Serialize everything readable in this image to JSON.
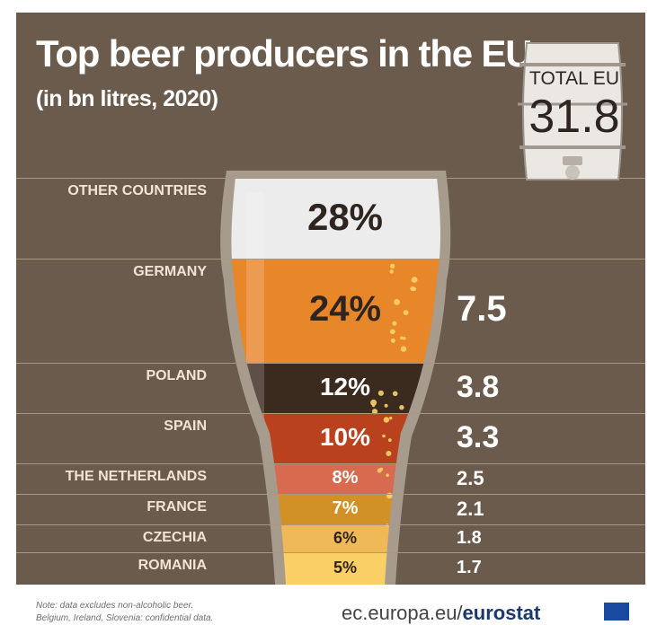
{
  "header": {
    "title": "Top beer producers in the EU",
    "subtitle": "(in bn litres, 2020)"
  },
  "total": {
    "label": "TOTAL EU",
    "value": "31.8"
  },
  "footer": {
    "note_line1": "Note: data excludes non-alcoholic beer.",
    "note_line2": "Belgium, Ireland, Slovenia: confidential data.",
    "source_prefix": "ec.europa.eu/",
    "source_brand": "eurostat"
  },
  "colors": {
    "background": "#6b5b4c",
    "foam": "#f3efe9",
    "other_countries": "#ececec",
    "germany": "#e8862a",
    "poland": "#3b2a1e",
    "spain": "#b9411e",
    "the_netherlands": "#d86a4f",
    "france": "#d29127",
    "czechia": "#efb957",
    "romania": "#f9cf66"
  },
  "chart_data": {
    "type": "bar",
    "title": "Top beer producers in the EU",
    "subtitle": "(in bn litres, 2020)",
    "categories": [
      "OTHER COUNTRIES",
      "GERMANY",
      "POLAND",
      "SPAIN",
      "THE NETHERLANDS",
      "FRANCE",
      "CZECHIA",
      "ROMANIA"
    ],
    "percent_labels": [
      "28%",
      "24%",
      "12%",
      "10%",
      "8%",
      "7%",
      "6%",
      "5%"
    ],
    "value_labels": [
      "",
      "7.5",
      "3.8",
      "3.3",
      "2.5",
      "2.1",
      "1.8",
      "1.7"
    ],
    "values": [
      null,
      7.5,
      3.8,
      3.3,
      2.5,
      2.1,
      1.8,
      1.7
    ],
    "percent_values": [
      28,
      24,
      12,
      10,
      8,
      7,
      6,
      5
    ],
    "total": 31.8
  }
}
